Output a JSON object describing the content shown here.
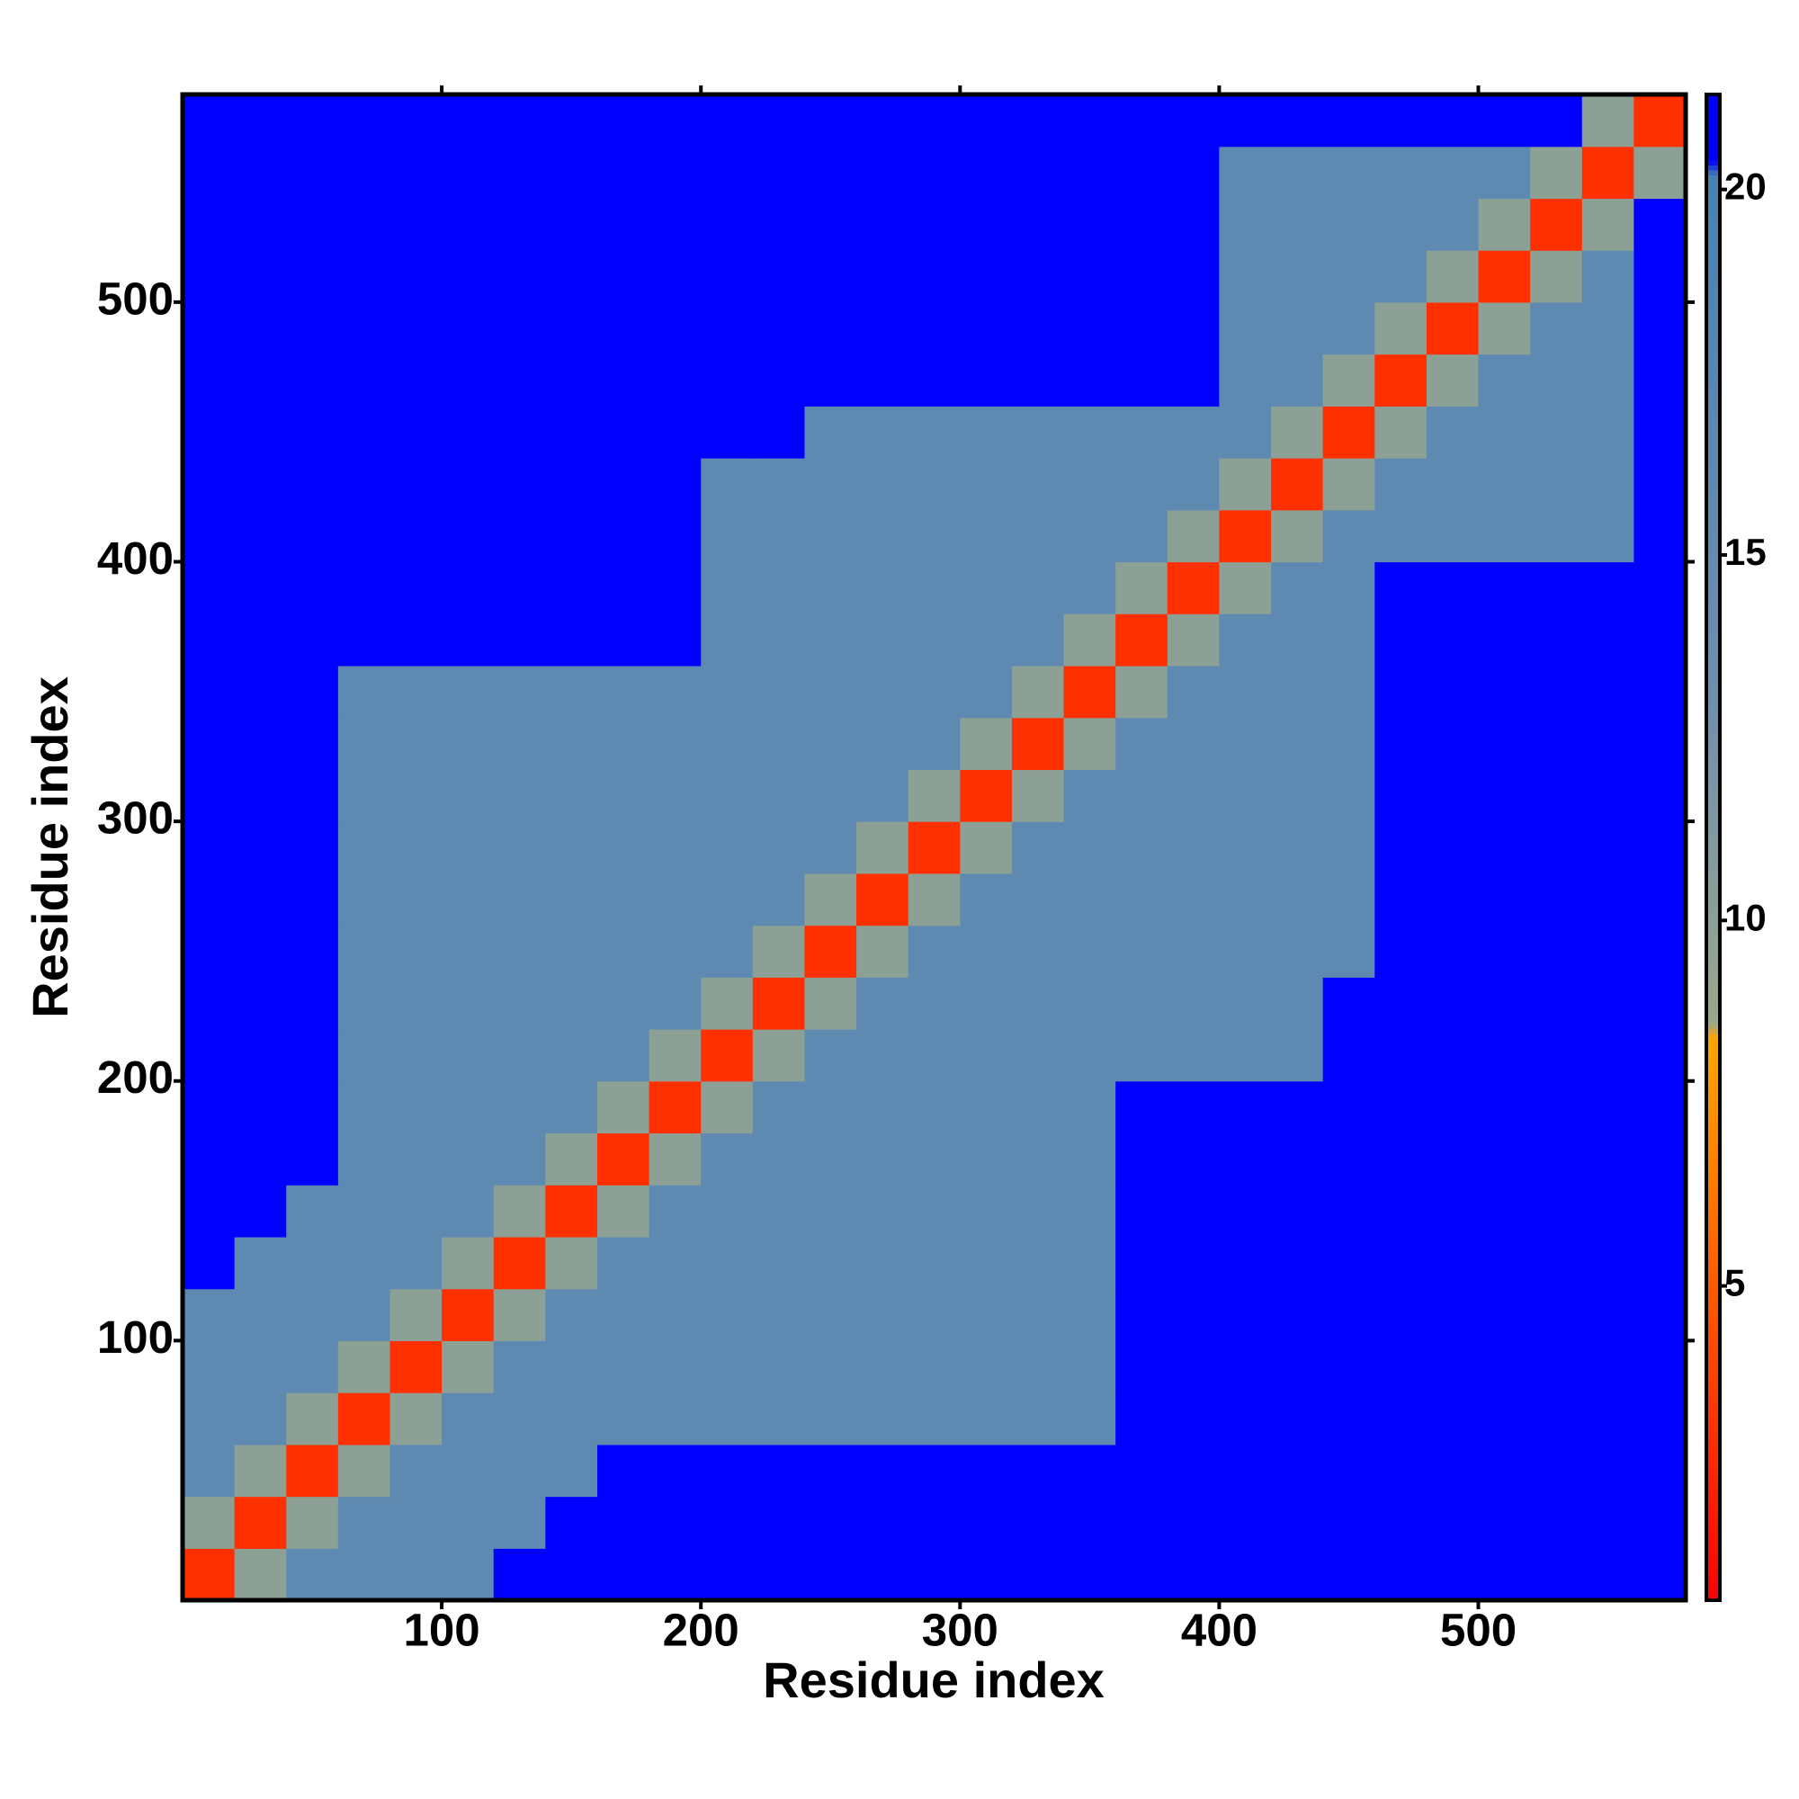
{
  "chart_data": {
    "type": "heatmap",
    "xlabel": "Residue index",
    "ylabel": "Residue index",
    "xbins": [
      0,
      20,
      40,
      60,
      80,
      100,
      120,
      140,
      160,
      180,
      200,
      220,
      240,
      260,
      280,
      300,
      320,
      340,
      360,
      380,
      400,
      420,
      440,
      460,
      480,
      500,
      520,
      540,
      560,
      580
    ],
    "ybins": [
      0,
      20,
      40,
      60,
      80,
      100,
      120,
      140,
      160,
      180,
      200,
      220,
      240,
      260,
      280,
      300,
      320,
      340,
      360,
      380,
      400,
      420,
      440,
      460,
      480,
      500,
      520,
      540,
      560,
      580
    ],
    "values": [
      [
        3,
        10,
        16,
        16,
        16,
        16,
        21,
        21,
        21,
        21,
        21,
        21,
        21,
        21,
        21,
        21,
        21,
        21,
        21,
        21,
        21,
        21,
        21,
        21,
        21,
        21,
        21,
        21,
        21
      ],
      [
        10,
        3,
        10,
        16,
        16,
        16,
        16,
        21,
        21,
        21,
        21,
        21,
        21,
        21,
        21,
        21,
        21,
        21,
        21,
        21,
        21,
        21,
        21,
        21,
        21,
        21,
        21,
        21,
        21
      ],
      [
        16,
        10,
        3,
        10,
        16,
        16,
        16,
        16,
        21,
        21,
        21,
        21,
        21,
        21,
        21,
        21,
        21,
        21,
        21,
        21,
        21,
        21,
        21,
        21,
        21,
        21,
        21,
        21,
        21
      ],
      [
        16,
        16,
        10,
        3,
        10,
        16,
        16,
        16,
        16,
        16,
        16,
        16,
        16,
        16,
        16,
        16,
        16,
        16,
        21,
        21,
        21,
        21,
        21,
        21,
        21,
        21,
        21,
        21,
        21
      ],
      [
        16,
        16,
        16,
        10,
        3,
        10,
        16,
        16,
        16,
        16,
        16,
        16,
        16,
        16,
        16,
        16,
        16,
        16,
        21,
        21,
        21,
        21,
        21,
        21,
        21,
        21,
        21,
        21,
        21
      ],
      [
        16,
        16,
        16,
        16,
        10,
        3,
        10,
        16,
        16,
        16,
        16,
        16,
        16,
        16,
        16,
        16,
        16,
        16,
        21,
        21,
        21,
        21,
        21,
        21,
        21,
        21,
        21,
        21,
        21
      ],
      [
        21,
        16,
        16,
        16,
        16,
        10,
        3,
        10,
        16,
        16,
        16,
        16,
        16,
        16,
        16,
        16,
        16,
        16,
        21,
        21,
        21,
        21,
        21,
        21,
        21,
        21,
        21,
        21,
        21
      ],
      [
        21,
        21,
        16,
        16,
        16,
        16,
        10,
        3,
        10,
        16,
        16,
        16,
        16,
        16,
        16,
        16,
        16,
        16,
        21,
        21,
        21,
        21,
        21,
        21,
        21,
        21,
        21,
        21,
        21
      ],
      [
        21,
        21,
        21,
        16,
        16,
        16,
        16,
        10,
        3,
        10,
        16,
        16,
        16,
        16,
        16,
        16,
        16,
        16,
        21,
        21,
        21,
        21,
        21,
        21,
        21,
        21,
        21,
        21,
        21
      ],
      [
        21,
        21,
        21,
        16,
        16,
        16,
        16,
        16,
        10,
        3,
        10,
        16,
        16,
        16,
        16,
        16,
        16,
        16,
        21,
        21,
        21,
        21,
        21,
        21,
        21,
        21,
        21,
        21,
        21
      ],
      [
        21,
        21,
        21,
        16,
        16,
        16,
        16,
        16,
        16,
        10,
        3,
        10,
        16,
        16,
        16,
        16,
        16,
        16,
        16,
        16,
        16,
        16,
        21,
        21,
        21,
        21,
        21,
        21,
        21
      ],
      [
        21,
        21,
        21,
        16,
        16,
        16,
        16,
        16,
        16,
        16,
        10,
        3,
        10,
        16,
        16,
        16,
        16,
        16,
        16,
        16,
        16,
        16,
        21,
        21,
        21,
        21,
        21,
        21,
        21
      ],
      [
        21,
        21,
        21,
        16,
        16,
        16,
        16,
        16,
        16,
        16,
        16,
        10,
        3,
        10,
        16,
        16,
        16,
        16,
        16,
        16,
        16,
        16,
        16,
        21,
        21,
        21,
        21,
        21,
        21
      ],
      [
        21,
        21,
        21,
        16,
        16,
        16,
        16,
        16,
        16,
        16,
        16,
        16,
        10,
        3,
        10,
        16,
        16,
        16,
        16,
        16,
        16,
        16,
        16,
        21,
        21,
        21,
        21,
        21,
        21
      ],
      [
        21,
        21,
        21,
        16,
        16,
        16,
        16,
        16,
        16,
        16,
        16,
        16,
        16,
        10,
        3,
        10,
        16,
        16,
        16,
        16,
        16,
        16,
        16,
        21,
        21,
        21,
        21,
        21,
        21
      ],
      [
        21,
        21,
        21,
        16,
        16,
        16,
        16,
        16,
        16,
        16,
        16,
        16,
        16,
        16,
        10,
        3,
        10,
        16,
        16,
        16,
        16,
        16,
        16,
        21,
        21,
        21,
        21,
        21,
        21
      ],
      [
        21,
        21,
        21,
        16,
        16,
        16,
        16,
        16,
        16,
        16,
        16,
        16,
        16,
        16,
        16,
        10,
        3,
        10,
        16,
        16,
        16,
        16,
        16,
        21,
        21,
        21,
        21,
        21,
        21
      ],
      [
        21,
        21,
        21,
        16,
        16,
        16,
        16,
        16,
        16,
        16,
        16,
        16,
        16,
        16,
        16,
        16,
        10,
        3,
        10,
        16,
        16,
        16,
        16,
        21,
        21,
        21,
        21,
        21,
        21
      ],
      [
        21,
        21,
        21,
        21,
        21,
        21,
        21,
        21,
        21,
        21,
        16,
        16,
        16,
        16,
        16,
        16,
        16,
        10,
        3,
        10,
        16,
        16,
        16,
        21,
        21,
        21,
        21,
        21,
        21
      ],
      [
        21,
        21,
        21,
        21,
        21,
        21,
        21,
        21,
        21,
        21,
        16,
        16,
        16,
        16,
        16,
        16,
        16,
        16,
        10,
        3,
        10,
        16,
        16,
        21,
        21,
        21,
        21,
        21,
        21
      ],
      [
        21,
        21,
        21,
        21,
        21,
        21,
        21,
        21,
        21,
        21,
        16,
        16,
        16,
        16,
        16,
        16,
        16,
        16,
        16,
        10,
        3,
        10,
        16,
        16,
        16,
        16,
        16,
        16,
        21
      ],
      [
        21,
        21,
        21,
        21,
        21,
        21,
        21,
        21,
        21,
        21,
        16,
        16,
        16,
        16,
        16,
        16,
        16,
        16,
        16,
        16,
        10,
        3,
        10,
        16,
        16,
        16,
        16,
        16,
        21
      ],
      [
        21,
        21,
        21,
        21,
        21,
        21,
        21,
        21,
        21,
        21,
        21,
        21,
        16,
        16,
        16,
        16,
        16,
        16,
        16,
        16,
        16,
        10,
        3,
        10,
        16,
        16,
        16,
        16,
        21
      ],
      [
        21,
        21,
        21,
        21,
        21,
        21,
        21,
        21,
        21,
        21,
        21,
        21,
        21,
        21,
        21,
        21,
        21,
        21,
        21,
        21,
        16,
        16,
        10,
        3,
        10,
        16,
        16,
        16,
        21
      ],
      [
        21,
        21,
        21,
        21,
        21,
        21,
        21,
        21,
        21,
        21,
        21,
        21,
        21,
        21,
        21,
        21,
        21,
        21,
        21,
        21,
        16,
        16,
        16,
        10,
        3,
        10,
        16,
        16,
        21
      ],
      [
        21,
        21,
        21,
        21,
        21,
        21,
        21,
        21,
        21,
        21,
        21,
        21,
        21,
        21,
        21,
        21,
        21,
        21,
        21,
        21,
        16,
        16,
        16,
        16,
        10,
        3,
        10,
        16,
        21
      ],
      [
        21,
        21,
        21,
        21,
        21,
        21,
        21,
        21,
        21,
        21,
        21,
        21,
        21,
        21,
        21,
        21,
        21,
        21,
        21,
        21,
        16,
        16,
        16,
        16,
        16,
        10,
        3,
        10,
        21
      ],
      [
        21,
        21,
        21,
        21,
        21,
        21,
        21,
        21,
        21,
        21,
        21,
        21,
        21,
        21,
        21,
        21,
        21,
        21,
        21,
        21,
        16,
        16,
        16,
        16,
        16,
        16,
        10,
        3,
        10
      ],
      [
        21,
        21,
        21,
        21,
        21,
        21,
        21,
        21,
        21,
        21,
        21,
        21,
        21,
        21,
        21,
        21,
        21,
        21,
        21,
        21,
        21,
        21,
        21,
        21,
        21,
        21,
        21,
        10,
        3
      ]
    ],
    "xlim": [
      0,
      580
    ],
    "ylim": [
      0,
      580
    ],
    "xticks": [
      100,
      200,
      300,
      400,
      500
    ],
    "yticks": [
      100,
      200,
      300,
      400,
      500
    ],
    "clim": [
      0.7,
      21.3
    ],
    "cticks": [
      5,
      10,
      15,
      20
    ],
    "colorscale": [
      [
        0.7,
        "#ff0000"
      ],
      [
        5,
        "#ff5a00"
      ],
      [
        8.4,
        "#ffa500"
      ],
      [
        8.6,
        "#9aa88a"
      ],
      [
        13,
        "#6f8fb0"
      ],
      [
        20.2,
        "#4682b4"
      ],
      [
        20.4,
        "#0000ff"
      ],
      [
        21.3,
        "#0000ff"
      ]
    ]
  }
}
